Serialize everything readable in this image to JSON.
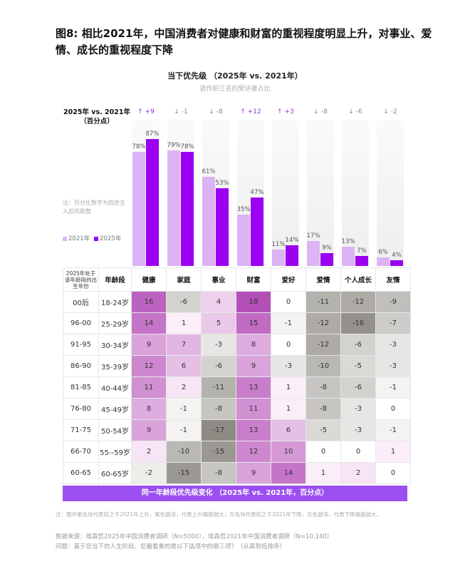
{
  "title": "图8: 相比2021年，中国消费者对健康和财富的重视程度明显上升，对事业、爱情、成长的重视程度下降",
  "chart": {
    "title": "当下优先级 （2025年 vs. 2021年）",
    "subtitle": "选作前三名的受访者占比",
    "delta_header_line1": "2025年 vs. 2021年",
    "delta_header_line2": "（百分点）",
    "note": "注：百分比数字为四舍五入后的取整",
    "legend": [
      {
        "label": "2021年",
        "color": "#dcb3f5"
      },
      {
        "label": "2025年",
        "color": "#9b00f0"
      }
    ]
  },
  "chart_data": [
    {
      "type": "bar",
      "title": "当下优先级 （2025年 vs. 2021年）",
      "subtitle": "选作前三名的受访者占比",
      "categories": [
        "健康",
        "家庭",
        "事业",
        "财富",
        "爱好",
        "爱情",
        "个人成长",
        "友情"
      ],
      "series": [
        {
          "name": "2021年",
          "values": [
            78,
            79,
            61,
            35,
            11,
            17,
            13,
            6
          ],
          "color": "#dcb3f5"
        },
        {
          "name": "2025年",
          "values": [
            87,
            78,
            53,
            47,
            14,
            9,
            7,
            4
          ],
          "color": "#9b00f0"
        }
      ],
      "value_labels": {
        "2021年": [
          "78%",
          "79%",
          "61%",
          "35%",
          "11%",
          "17%",
          "13%",
          "6%"
        ],
        "2025年": [
          "87%",
          "78%",
          "53%",
          "47%",
          "14%",
          "9%",
          "7%",
          "4%"
        ]
      },
      "deltas": [
        {
          "arrow": "↑",
          "value": "+9",
          "dir": "up"
        },
        {
          "arrow": "↓",
          "value": "-1",
          "dir": "down"
        },
        {
          "arrow": "↓",
          "value": "-8",
          "dir": "down"
        },
        {
          "arrow": "↑",
          "value": "+12",
          "dir": "up"
        },
        {
          "arrow": "↑",
          "value": "+3",
          "dir": "up"
        },
        {
          "arrow": "↓",
          "value": "-8",
          "dir": "down"
        },
        {
          "arrow": "↓",
          "value": "-6",
          "dir": "down"
        },
        {
          "arrow": "↓",
          "value": "-2",
          "dir": "down"
        }
      ],
      "delta_header": "2025年 vs. 2021年（百分点）",
      "ylim": [
        0,
        100
      ],
      "legend_position": "left"
    },
    {
      "type": "heatmap",
      "title": "同一年龄段优先级变化 （2025年 vs. 2021年，百分点）",
      "row_header_1": "2025年处于该年龄段的出生年份",
      "row_header_2": "年龄段",
      "columns": [
        "健康",
        "家庭",
        "事业",
        "财富",
        "爱好",
        "爱情",
        "个人成长",
        "友情"
      ],
      "rows": [
        {
          "birth": "00后",
          "age": "18-24岁",
          "values": [
            16,
            -6,
            4,
            18,
            0,
            -11,
            -12,
            -9
          ]
        },
        {
          "birth": "96-00",
          "age": "25-29岁",
          "values": [
            14,
            1,
            5,
            15,
            -1,
            -12,
            -16,
            -7
          ]
        },
        {
          "birth": "91-95",
          "age": "30-34岁",
          "values": [
            9,
            7,
            -3,
            8,
            0,
            -12,
            -6,
            -3
          ]
        },
        {
          "birth": "86-90",
          "age": "35-39岁",
          "values": [
            12,
            6,
            -6,
            9,
            -3,
            -10,
            -5,
            -3
          ]
        },
        {
          "birth": "81-85",
          "age": "40-44岁",
          "values": [
            11,
            2,
            -11,
            13,
            1,
            -8,
            -6,
            -1
          ]
        },
        {
          "birth": "76-80",
          "age": "45-49岁",
          "values": [
            8,
            -1,
            -8,
            11,
            1,
            -8,
            -3,
            0
          ]
        },
        {
          "birth": "71-75",
          "age": "50-54岁",
          "values": [
            9,
            -1,
            -17,
            13,
            6,
            -5,
            -3,
            -1
          ]
        },
        {
          "birth": "66-70",
          "age": "55--59岁",
          "values": [
            2,
            -10,
            -15,
            12,
            10,
            0,
            0,
            1
          ]
        },
        {
          "birth": "60-65",
          "age": "60-65岁",
          "values": [
            -2,
            -15,
            -8,
            9,
            14,
            1,
            2,
            0
          ]
        }
      ],
      "color_scale": {
        "positive": "#b44fb8",
        "negative": "#8e8a84",
        "neutral": "#ffffff"
      }
    }
  ],
  "table": {
    "header_hint": "2025年处于该年龄段的出生年份",
    "header_age": "年龄段",
    "footer": "同一年龄段优先级变化 （2025年 vs. 2021年，百分点）"
  },
  "footnotes": {
    "color_note": "注：图中紫色块代表较之于2021年上升，紫色越深，代表上升幅度越大；灰色块代表较之于2021年下降，灰色越深，代表下降幅度越大。",
    "source": "数据来源：埃森哲2025年中国消费者调研（N=5000），埃森哲2021年中国消费者调研（N=10,140）",
    "question": "问题：基于您当下的人生阶段，您最看重的是以下选项中的哪三项？（从高到低排序）"
  }
}
